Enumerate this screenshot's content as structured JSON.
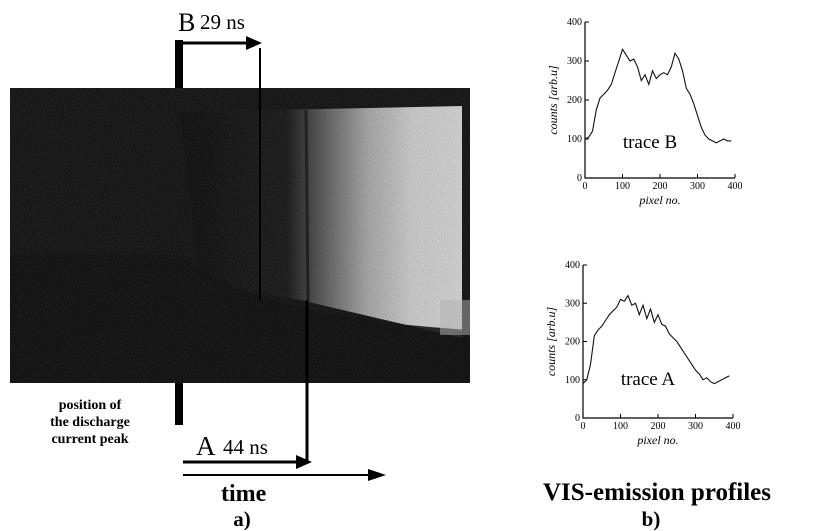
{
  "panel_a": {
    "marker_b_label": "B",
    "marker_b_delay": "29 ns",
    "marker_a_label": "A",
    "marker_a_delay": "44 ns",
    "annotation_lines": [
      "position of",
      "the discharge",
      "current peak"
    ],
    "time_label": "time",
    "caption": "a)"
  },
  "panel_b": {
    "heading": "VIS-emission profiles",
    "caption": "b)"
  },
  "chart_data": [
    {
      "type": "line",
      "xlabel": "pixel no.",
      "ylabel": "counts  [arb.u]",
      "xlim": [
        0,
        400
      ],
      "ylim": [
        0,
        400
      ],
      "xticks": [
        0,
        100,
        200,
        300,
        400
      ],
      "yticks": [
        0,
        100,
        200,
        300,
        400
      ],
      "series": [
        {
          "name": "trace B",
          "x": [
            0,
            10,
            20,
            30,
            40,
            50,
            60,
            70,
            80,
            90,
            100,
            110,
            120,
            130,
            140,
            150,
            160,
            170,
            180,
            190,
            200,
            210,
            220,
            230,
            240,
            250,
            260,
            270,
            280,
            290,
            300,
            310,
            320,
            330,
            340,
            350,
            360,
            370,
            380,
            390
          ],
          "y": [
            100,
            105,
            120,
            175,
            205,
            215,
            225,
            240,
            270,
            300,
            330,
            315,
            300,
            305,
            285,
            250,
            265,
            240,
            275,
            255,
            265,
            270,
            265,
            285,
            320,
            305,
            275,
            230,
            215,
            190,
            160,
            130,
            110,
            100,
            95,
            90,
            95,
            100,
            95,
            95
          ]
        }
      ]
    },
    {
      "type": "line",
      "xlabel": "pixel no.",
      "ylabel": "counts  [arb.u]",
      "xlim": [
        0,
        400
      ],
      "ylim": [
        0,
        400
      ],
      "xticks": [
        0,
        100,
        200,
        300,
        400
      ],
      "yticks": [
        0,
        100,
        200,
        300,
        400
      ],
      "series": [
        {
          "name": "trace A",
          "x": [
            0,
            10,
            20,
            30,
            40,
            50,
            60,
            70,
            80,
            90,
            100,
            110,
            120,
            130,
            140,
            150,
            160,
            170,
            180,
            190,
            200,
            210,
            220,
            230,
            240,
            250,
            260,
            270,
            280,
            290,
            300,
            310,
            320,
            330,
            340,
            350,
            360,
            370,
            380,
            390
          ],
          "y": [
            90,
            100,
            140,
            215,
            230,
            240,
            255,
            270,
            280,
            290,
            310,
            305,
            320,
            295,
            300,
            270,
            295,
            260,
            285,
            250,
            270,
            245,
            240,
            220,
            210,
            200,
            185,
            170,
            155,
            140,
            125,
            115,
            100,
            105,
            95,
            90,
            95,
            100,
            105,
            110
          ]
        }
      ]
    }
  ]
}
